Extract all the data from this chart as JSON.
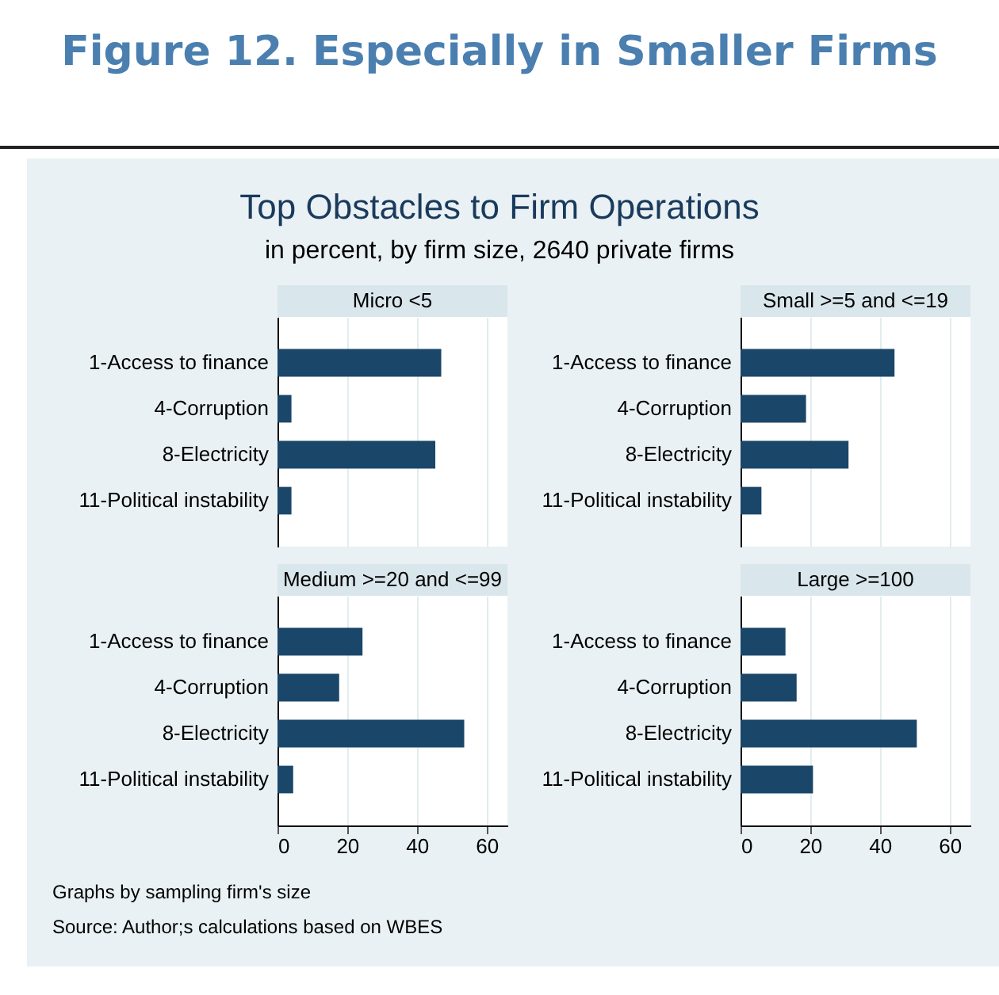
{
  "chart_data": [
    {
      "type": "bar",
      "orientation": "horizontal",
      "title": "Micro <5",
      "annotations": [
        "Figure 12. Especially in Smaller Firms",
        "Top Obstacles to Firm Operations",
        "in percent, by firm size, 2640 private firms"
      ],
      "categories": [
        "1-Access to finance",
        "4-Corruption",
        "8-Electricity",
        "11-Political instability"
      ],
      "values": [
        47,
        4,
        45.3,
        4
      ],
      "color": "#1a4669",
      "xlim": [
        0,
        66
      ],
      "xticks": [
        0,
        20,
        40,
        60
      ],
      "grid": "x",
      "tick_labels": "y"
    },
    {
      "type": "bar",
      "orientation": "horizontal",
      "title": "Small >=5 and <=19",
      "categories": [
        "1-Access to finance",
        "4-Corruption",
        "8-Electricity",
        "11-Political instability"
      ],
      "values": [
        44.2,
        18.8,
        31,
        6
      ],
      "color": "#1a4669",
      "xlim": [
        0,
        66
      ],
      "xticks": [
        0,
        20,
        40,
        60
      ],
      "grid": "x",
      "tick_labels": "y"
    },
    {
      "type": "bar",
      "orientation": "horizontal",
      "title": "Medium >=20 and <=99",
      "categories": [
        "1-Access to finance",
        "4-Corruption",
        "8-Electricity",
        "11-Political instability"
      ],
      "values": [
        24.4,
        17.7,
        53.6,
        4.5
      ],
      "color": "#1a4669",
      "xlim": [
        0,
        66
      ],
      "xticks": [
        0,
        20,
        40,
        60
      ],
      "grid": "x"
    },
    {
      "type": "bar",
      "orientation": "horizontal",
      "title": "Large >=100",
      "annotations": [
        "Graphs by sampling firm's size",
        "Source: Author;s calculations based on WBES"
      ],
      "categories": [
        "1-Access to finance",
        "4-Corruption",
        "8-Electricity",
        "11-Political instability"
      ],
      "values": [
        12.9,
        16.1,
        50.6,
        20.8
      ],
      "color": "#1a4669",
      "xlim": [
        0,
        66
      ],
      "xticks": [
        0,
        20,
        40,
        60
      ],
      "grid": "x"
    }
  ]
}
